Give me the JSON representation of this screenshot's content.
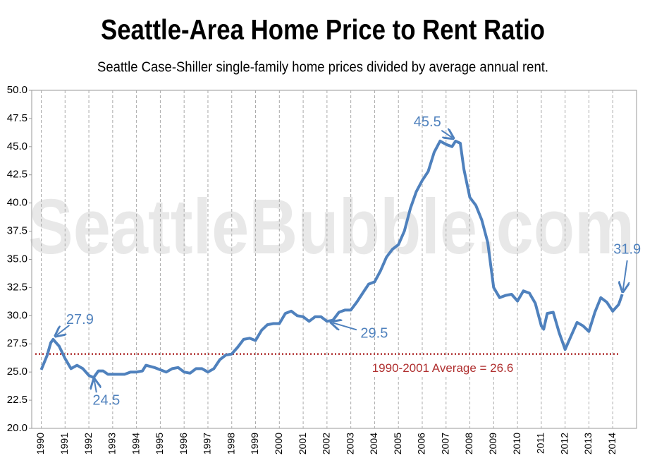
{
  "chart_data": {
    "type": "line",
    "title": "Seattle-Area Home Price to Rent Ratio",
    "subtitle": "Seattle Case-Shiller single-family home prices divided by average annual rent.",
    "watermark": "SeattleBubble.com",
    "x": [
      1990.0,
      1990.25,
      1990.4,
      1990.5,
      1990.75,
      1991.0,
      1991.25,
      1991.5,
      1991.75,
      1992.0,
      1992.2,
      1992.4,
      1992.6,
      1992.8,
      1993.0,
      1993.5,
      1993.75,
      1994.0,
      1994.25,
      1994.4,
      1994.75,
      1995.0,
      1995.25,
      1995.5,
      1995.75,
      1996.0,
      1996.25,
      1996.5,
      1996.75,
      1997.0,
      1997.25,
      1997.5,
      1997.75,
      1998.0,
      1998.25,
      1998.5,
      1998.75,
      1999.0,
      1999.25,
      1999.5,
      1999.75,
      2000.0,
      2000.25,
      2000.5,
      2000.75,
      2001.0,
      2001.25,
      2001.5,
      2001.75,
      2002.0,
      2002.25,
      2002.5,
      2002.75,
      2003.0,
      2003.25,
      2003.5,
      2003.75,
      2004.0,
      2004.25,
      2004.5,
      2004.75,
      2005.0,
      2005.25,
      2005.5,
      2005.75,
      2006.0,
      2006.25,
      2006.5,
      2006.75,
      2007.0,
      2007.25,
      2007.4,
      2007.6,
      2007.75,
      2008.0,
      2008.25,
      2008.5,
      2008.75,
      2009.0,
      2009.25,
      2009.5,
      2009.75,
      2010.0,
      2010.25,
      2010.5,
      2010.75,
      2011.0,
      2011.1,
      2011.25,
      2011.5,
      2011.75,
      2012.0,
      2012.25,
      2012.5,
      2012.75,
      2013.0,
      2013.25,
      2013.5,
      2013.75,
      2014.0,
      2014.25,
      2014.4
    ],
    "series": [
      {
        "color": "#4f81bd",
        "values": [
          25.2,
          26.5,
          27.6,
          27.9,
          27.3,
          26.2,
          25.3,
          25.6,
          25.3,
          24.7,
          24.5,
          25.1,
          25.1,
          24.8,
          24.8,
          24.8,
          25.0,
          25.0,
          25.1,
          25.6,
          25.4,
          25.2,
          25.0,
          25.3,
          25.4,
          25.0,
          24.9,
          25.3,
          25.3,
          25.0,
          25.3,
          26.1,
          26.5,
          26.6,
          27.2,
          27.9,
          28.0,
          27.8,
          28.7,
          29.2,
          29.3,
          29.3,
          30.2,
          30.4,
          30.0,
          29.9,
          29.5,
          29.9,
          29.9,
          29.5,
          29.6,
          30.3,
          30.5,
          30.5,
          31.2,
          32.0,
          32.8,
          33.0,
          34.0,
          35.2,
          35.9,
          36.3,
          37.5,
          39.5,
          41.0,
          42.0,
          42.8,
          44.5,
          45.5,
          45.2,
          45.0,
          45.5,
          45.3,
          43.0,
          40.5,
          39.8,
          38.5,
          36.5,
          32.5,
          31.6,
          31.8,
          31.9,
          31.3,
          32.2,
          32.0,
          31.1,
          29.1,
          28.8,
          30.2,
          30.3,
          28.5,
          27.0,
          28.2,
          29.4,
          29.1,
          28.6,
          30.3,
          31.6,
          31.2,
          30.4,
          31.0,
          31.9
        ]
      }
    ],
    "average": {
      "label": "1990-2001 Average = 26.6",
      "value": 26.6,
      "color": "#b03030"
    },
    "annotations": [
      {
        "label": "27.9",
        "x": 1990.5,
        "y": 27.9
      },
      {
        "label": "24.5",
        "x": 1992.2,
        "y": 24.5
      },
      {
        "label": "29.5",
        "x": 2002.0,
        "y": 29.5
      },
      {
        "label": "45.5",
        "x": 2007.4,
        "y": 45.5
      },
      {
        "label": "31.9",
        "x": 2014.4,
        "y": 31.9
      }
    ],
    "xlim": [
      1989.6,
      2015.0
    ],
    "xticks": [
      1990,
      1991,
      1992,
      1993,
      1994,
      1995,
      1996,
      1997,
      1998,
      1999,
      2000,
      2001,
      2002,
      2003,
      2004,
      2005,
      2006,
      2007,
      2008,
      2009,
      2010,
      2011,
      2012,
      2013,
      2014
    ],
    "ylim": [
      20,
      50
    ],
    "yticks": [
      {
        "value": 20,
        "label": "20.0"
      },
      {
        "value": 22.5,
        "label": "22.5"
      },
      {
        "value": 25,
        "label": "25.0"
      },
      {
        "value": 27.5,
        "label": "27.5"
      },
      {
        "value": 30,
        "label": "30.0"
      },
      {
        "value": 32.5,
        "label": "32.5"
      },
      {
        "value": 35,
        "label": "35.0"
      },
      {
        "value": 37.5,
        "label": "37.5"
      },
      {
        "value": 40,
        "label": "40.0"
      },
      {
        "value": 42.5,
        "label": "42.5"
      },
      {
        "value": 45,
        "label": "45.0"
      },
      {
        "value": 47.5,
        "label": "47.5"
      },
      {
        "value": 50,
        "label": "50.0"
      }
    ],
    "grid": true
  }
}
